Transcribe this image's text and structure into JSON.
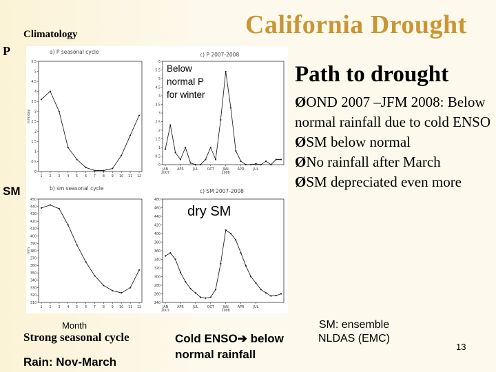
{
  "slide": {
    "title": "California Drought",
    "climatology_label": "Climatology",
    "row_label_p": "P",
    "row_label_sm": "SM",
    "below_note": [
      "Below",
      "normal P",
      "for winter"
    ],
    "dry_sm": "dry SM",
    "path_title": "Path to drought",
    "bullets": [
      {
        "arrow": "Ø",
        "text": "OND 2007 –JFM 2008: Below normal rainfall due to cold ENSO"
      },
      {
        "arrow": "Ø",
        "text": "SM below normal"
      },
      {
        "arrow": "Ø",
        "text": "No rainfall after March"
      },
      {
        "arrow": "Ø",
        "text": "SM depreciated even more"
      }
    ],
    "month_label": "Month",
    "strong_cycle": "Strong seasonal cycle",
    "rain_period": "Rain: Nov-March",
    "cold_enso_a": "Cold ENSO",
    "cold_enso_arrow": "➔",
    "cold_enso_b": " below normal rainfall",
    "ensemble": [
      "SM: ensemble",
      "NLDAS (EMC)"
    ],
    "page_number": "13"
  },
  "chart_data": [
    {
      "id": "p-seasonal",
      "type": "line",
      "title": "a) P seasonal cycle",
      "ylabel": "mm/day",
      "ylim": [
        0,
        5.5
      ],
      "yticks": [
        0,
        0.5,
        1,
        1.5,
        2,
        2.5,
        3,
        3.5,
        4,
        4.5,
        5,
        5.5
      ],
      "x": [
        1,
        2,
        3,
        4,
        5,
        6,
        7,
        8,
        9,
        10,
        11,
        12
      ],
      "xticks": [
        "1",
        "2",
        "3",
        "4",
        "5",
        "6",
        "7",
        "8",
        "9",
        "10",
        "11",
        "12"
      ],
      "values": [
        3.6,
        4.0,
        3.0,
        1.2,
        0.6,
        0.2,
        0.05,
        0.05,
        0.15,
        0.8,
        1.8,
        2.8
      ]
    },
    {
      "id": "p-2007-2008",
      "type": "line",
      "title": "c) P 2007-2008",
      "ylim": [
        0,
        6
      ],
      "yticks": [
        0,
        0.5,
        1,
        1.5,
        2,
        2.5,
        3,
        3.5,
        4,
        4.5,
        5,
        5.5,
        6
      ],
      "x": [
        0,
        1,
        2,
        3,
        4,
        5,
        6,
        7,
        8,
        9,
        10,
        11,
        12,
        13,
        14,
        15,
        16,
        17,
        18,
        19,
        20,
        21,
        22,
        23
      ],
      "xticks": [
        "JAN\n2007",
        "APR",
        "JUL",
        "OCT",
        "JAN\n2008",
        "APR",
        "JUL"
      ],
      "xtick_pos": [
        0,
        3,
        6,
        9,
        12,
        15,
        18
      ],
      "values": [
        0.9,
        2.3,
        0.7,
        0.3,
        1.0,
        0.1,
        0.0,
        0.0,
        0.3,
        1.0,
        0.3,
        2.6,
        5.4,
        3.3,
        0.8,
        0.2,
        0.0,
        0.0,
        0.05,
        0.0,
        0.2,
        0.0,
        0.3,
        0.3
      ]
    },
    {
      "id": "sm-seasonal",
      "type": "line",
      "title": "b) sm seasonal cycle",
      "ylabel": "mm",
      "ylim": [
        310,
        450
      ],
      "yticks": [
        310,
        320,
        330,
        340,
        350,
        360,
        370,
        380,
        390,
        400,
        410,
        420,
        430,
        440,
        450
      ],
      "x": [
        1,
        2,
        3,
        4,
        5,
        6,
        7,
        8,
        9,
        10,
        11,
        12
      ],
      "xticks": [
        "1",
        "2",
        "3",
        "4",
        "5",
        "6",
        "7",
        "8",
        "9",
        "10",
        "11",
        "12"
      ],
      "values": [
        438,
        442,
        437,
        415,
        388,
        365,
        346,
        333,
        326,
        323,
        330,
        354
      ]
    },
    {
      "id": "sm-2007-2008",
      "type": "line",
      "title": "c) SM 2007-2008",
      "ylim": [
        240,
        480
      ],
      "yticks": [
        240,
        260,
        280,
        300,
        320,
        340,
        360,
        380,
        400,
        420,
        440,
        460,
        480
      ],
      "x": [
        0,
        1,
        2,
        3,
        4,
        5,
        6,
        7,
        8,
        9,
        10,
        11,
        12,
        13,
        14,
        15,
        16,
        17,
        18,
        19,
        20,
        21,
        22,
        23
      ],
      "xticks": [
        "JAN\n2007",
        "APR",
        "JUL",
        "OCT",
        "JAN\n2008",
        "APR",
        "JUL"
      ],
      "xtick_pos": [
        0,
        3,
        6,
        9,
        12,
        15,
        18
      ],
      "values": [
        348,
        355,
        340,
        310,
        288,
        272,
        262,
        252,
        250,
        252,
        270,
        330,
        408,
        400,
        385,
        355,
        325,
        300,
        285,
        270,
        262,
        255,
        256,
        260
      ]
    }
  ]
}
